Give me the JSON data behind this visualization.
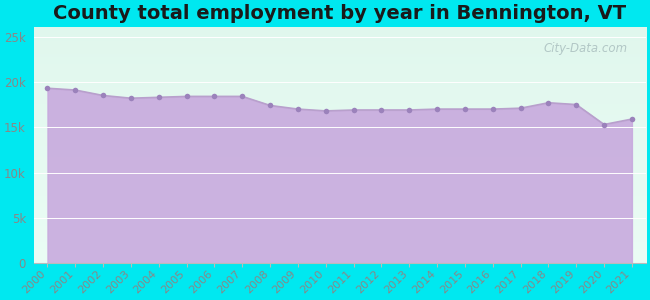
{
  "title": "County total employment by year in Bennington, VT",
  "years": [
    2000,
    2001,
    2002,
    2003,
    2004,
    2005,
    2006,
    2007,
    2008,
    2009,
    2010,
    2011,
    2012,
    2013,
    2014,
    2015,
    2016,
    2017,
    2018,
    2019,
    2020,
    2021
  ],
  "values": [
    19300,
    19100,
    18500,
    18200,
    18300,
    18400,
    18400,
    18400,
    17400,
    17000,
    16800,
    16900,
    16900,
    16900,
    17000,
    17000,
    17000,
    17100,
    17700,
    17500,
    15300,
    15900
  ],
  "line_color": "#b8a0cc",
  "fill_color": "#c8aade",
  "marker_color": "#9b82bb",
  "background_outer": "#00e8f0",
  "background_inner_top": "#e0f5ee",
  "background_inner_bottom": "#e8f8f0",
  "ytick_labels": [
    "0",
    "5k",
    "10k",
    "15k",
    "20k",
    "25k"
  ],
  "ytick_values": [
    0,
    5000,
    10000,
    15000,
    20000,
    25000
  ],
  "ylim": [
    0,
    26000
  ],
  "watermark": "City-Data.com",
  "title_fontsize": 14,
  "tick_fontsize": 8.5,
  "tick_color": "#888888"
}
